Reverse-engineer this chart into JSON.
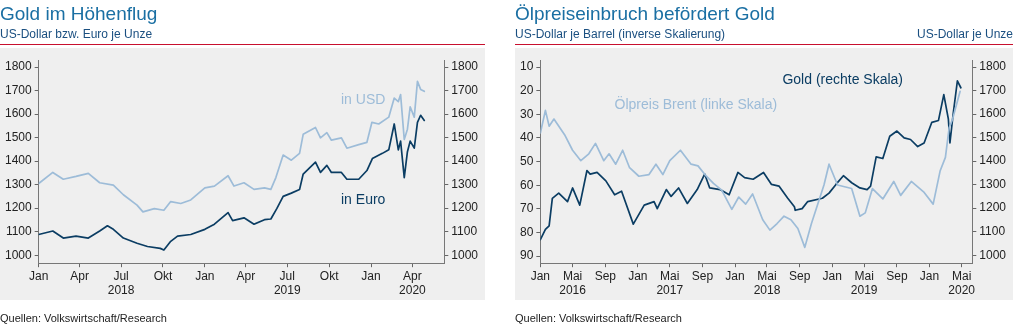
{
  "chart_data": [
    {
      "type": "line",
      "title": "Gold im Höhenflug",
      "subtitle": "US-Dollar bzw. Euro je Unze",
      "annotations": [
        "Quellen: Volkswirtschaft/Research"
      ],
      "xlim": [
        "2018-01-01",
        "2020-06-10"
      ],
      "xticks": [
        {
          "value": "2018-01-01",
          "label": "Jan"
        },
        {
          "value": "2018-04-01",
          "label": "Apr"
        },
        {
          "value": "2018-07-01",
          "label": "Jul\n2018"
        },
        {
          "value": "2018-10-01",
          "label": "Okt"
        },
        {
          "value": "2019-01-01",
          "label": "Jan"
        },
        {
          "value": "2019-04-01",
          "label": "Apr"
        },
        {
          "value": "2019-07-01",
          "label": "Jul\n2019"
        },
        {
          "value": "2019-10-01",
          "label": "Okt"
        },
        {
          "value": "2020-01-01",
          "label": "Jan"
        },
        {
          "value": "2020-04-01",
          "label": "Apr\n2020"
        }
      ],
      "ylim": [
        966,
        1830
      ],
      "yticks": [
        1000,
        1100,
        1200,
        1300,
        1400,
        1500,
        1600,
        1700,
        1800
      ],
      "y2lim": [
        966,
        1830
      ],
      "y2ticks": [
        1000,
        1100,
        1200,
        1300,
        1400,
        1500,
        1600,
        1700,
        1800
      ],
      "series": [
        {
          "name": "in USD",
          "color": "#9dbcd8",
          "x": [
            "2018-01-01",
            "2018-02-01",
            "2018-02-24",
            "2018-03-24",
            "2018-04-20",
            "2018-05-15",
            "2018-06-14",
            "2018-07-06",
            "2018-08-05",
            "2018-08-18",
            "2018-09-12",
            "2018-10-03",
            "2018-10-18",
            "2018-11-09",
            "2018-12-01",
            "2019-01-01",
            "2019-01-22",
            "2019-02-21",
            "2019-03-06",
            "2019-03-28",
            "2019-04-19",
            "2019-05-12",
            "2019-05-26",
            "2019-06-06",
            "2019-06-22",
            "2019-07-10",
            "2019-07-28",
            "2019-08-05",
            "2019-09-01",
            "2019-09-12",
            "2019-09-26",
            "2019-10-06",
            "2019-10-28",
            "2019-11-09",
            "2019-12-05",
            "2019-12-23",
            "2020-01-03",
            "2020-01-18",
            "2020-02-09",
            "2020-02-21",
            "2020-03-01",
            "2020-03-06",
            "2020-03-14",
            "2020-03-21",
            "2020-03-27",
            "2020-04-05",
            "2020-04-12",
            "2020-04-19",
            "2020-04-27"
          ],
          "values": [
            1305,
            1352,
            1323,
            1335,
            1348,
            1308,
            1298,
            1257,
            1213,
            1184,
            1198,
            1191,
            1228,
            1220,
            1235,
            1286,
            1294,
            1338,
            1294,
            1308,
            1280,
            1286,
            1280,
            1330,
            1426,
            1404,
            1433,
            1514,
            1543,
            1499,
            1521,
            1489,
            1499,
            1455,
            1470,
            1480,
            1565,
            1558,
            1587,
            1668,
            1653,
            1683,
            1492,
            1536,
            1631,
            1587,
            1739,
            1705,
            1697
          ]
        },
        {
          "name": "in Euro",
          "color": "#0b3d63",
          "x": [
            "2018-01-01",
            "2018-02-01",
            "2018-02-24",
            "2018-03-24",
            "2018-04-20",
            "2018-05-15",
            "2018-06-01",
            "2018-06-14",
            "2018-07-06",
            "2018-08-05",
            "2018-08-28",
            "2018-09-25",
            "2018-10-03",
            "2018-10-18",
            "2018-11-02",
            "2018-12-01",
            "2019-01-01",
            "2019-01-22",
            "2019-02-21",
            "2019-03-03",
            "2019-03-28",
            "2019-04-19",
            "2019-05-12",
            "2019-05-26",
            "2019-06-08",
            "2019-06-22",
            "2019-07-10",
            "2019-07-28",
            "2019-08-05",
            "2019-09-01",
            "2019-09-12",
            "2019-09-26",
            "2019-10-06",
            "2019-10-28",
            "2019-11-09",
            "2019-12-05",
            "2019-12-23",
            "2020-01-04",
            "2020-01-26",
            "2020-02-09",
            "2020-02-21",
            "2020-03-01",
            "2020-03-06",
            "2020-03-14",
            "2020-03-21",
            "2020-03-27",
            "2020-04-05",
            "2020-04-12",
            "2020-04-19",
            "2020-04-27"
          ],
          "values": [
            1088,
            1103,
            1073,
            1081,
            1073,
            1103,
            1125,
            1110,
            1073,
            1051,
            1037,
            1029,
            1022,
            1059,
            1081,
            1088,
            1110,
            1132,
            1181,
            1147,
            1159,
            1132,
            1151,
            1154,
            1198,
            1250,
            1264,
            1279,
            1345,
            1396,
            1352,
            1382,
            1352,
            1352,
            1323,
            1323,
            1360,
            1411,
            1433,
            1448,
            1558,
            1448,
            1485,
            1330,
            1440,
            1485,
            1455,
            1565,
            1595,
            1573
          ]
        }
      ]
    },
    {
      "type": "line",
      "title": "Ölpreiseinbruch befördert Gold",
      "ylabel": "US-Dollar je Barrel (inverse Skalierung)",
      "y2label": "US-Dollar je Unze",
      "annotations": [
        "Quellen: Volkswirtschaft/Research"
      ],
      "xlim": [
        "2016-01-01",
        "2020-06-10"
      ],
      "xticks": [
        {
          "value": "2016-01-01",
          "label": "Jan"
        },
        {
          "value": "2016-05-01",
          "label": "Mai\n2016"
        },
        {
          "value": "2016-09-01",
          "label": "Sep"
        },
        {
          "value": "2017-01-01",
          "label": "Jan"
        },
        {
          "value": "2017-05-01",
          "label": "Mai\n2017"
        },
        {
          "value": "2017-09-01",
          "label": "Sep"
        },
        {
          "value": "2018-01-01",
          "label": "Jan"
        },
        {
          "value": "2018-05-01",
          "label": "Mai\n2018"
        },
        {
          "value": "2018-09-01",
          "label": "Sep"
        },
        {
          "value": "2019-01-01",
          "label": "Jan"
        },
        {
          "value": "2019-05-01",
          "label": "Mai\n2019"
        },
        {
          "value": "2019-09-01",
          "label": "Sep"
        },
        {
          "value": "2020-01-01",
          "label": "Jan"
        },
        {
          "value": "2020-05-01",
          "label": "Mai\n2020"
        }
      ],
      "ylim": [
        93,
        7
      ],
      "yticks": [
        10,
        20,
        30,
        40,
        50,
        60,
        70,
        80,
        90
      ],
      "y2lim": [
        966,
        1830
      ],
      "y2ticks": [
        1000,
        1100,
        1200,
        1300,
        1400,
        1500,
        1600,
        1700,
        1800
      ],
      "series": [
        {
          "name": "Ölpreis Brent (linke Skala)",
          "color": "#9dbcd8",
          "x": [
            "2016-01-01",
            "2016-01-20",
            "2016-02-03",
            "2016-02-21",
            "2016-04-01",
            "2016-05-01",
            "2016-06-01",
            "2016-07-01",
            "2016-07-26",
            "2016-08-26",
            "2016-09-15",
            "2016-10-10",
            "2016-11-05",
            "2016-12-01",
            "2017-01-05",
            "2017-02-12",
            "2017-03-10",
            "2017-04-05",
            "2017-05-01",
            "2017-06-10",
            "2017-07-20",
            "2017-08-15",
            "2017-09-10",
            "2017-10-12",
            "2017-11-12",
            "2017-12-20",
            "2018-01-15",
            "2018-02-10",
            "2018-03-08",
            "2018-04-15",
            "2018-05-12",
            "2018-06-08",
            "2018-07-04",
            "2018-07-30",
            "2018-08-25",
            "2018-09-20",
            "2018-10-15",
            "2018-12-01",
            "2018-12-20",
            "2019-01-21",
            "2019-03-15",
            "2019-04-15",
            "2019-05-05",
            "2019-06-01",
            "2019-07-10",
            "2019-08-20",
            "2019-09-15",
            "2019-10-25",
            "2019-12-10",
            "2020-01-15",
            "2020-02-10",
            "2020-03-01",
            "2020-03-15",
            "2020-03-28",
            "2020-04-25"
          ],
          "values": [
            37.9,
            28.3,
            35,
            32,
            38.6,
            45.2,
            49.6,
            46.7,
            42.3,
            49.6,
            46.7,
            51.1,
            45.2,
            52.6,
            56.2,
            55.5,
            51.1,
            55.5,
            49.6,
            45.2,
            51.1,
            51.8,
            55.5,
            59.2,
            62.1,
            70.2,
            65,
            68,
            63.7,
            74.6,
            79,
            76.2,
            73.1,
            74.6,
            78.3,
            86.3,
            76.2,
            59.9,
            51.1,
            59.9,
            61.4,
            73.1,
            71.7,
            61.4,
            65.8,
            58.4,
            64.3,
            58.4,
            62.8,
            68,
            54,
            48.2,
            35.7,
            32,
            20.3
          ]
        },
        {
          "name": "Gold (rechte Skala)",
          "color": "#0b3d63",
          "axis": "y2",
          "x": [
            "2016-01-01",
            "2016-01-20",
            "2016-02-03",
            "2016-02-15",
            "2016-03-10",
            "2016-04-12",
            "2016-05-01",
            "2016-05-28",
            "2016-06-24",
            "2016-07-06",
            "2016-08-01",
            "2016-09-03",
            "2016-10-06",
            "2016-11-01",
            "2016-12-15",
            "2017-01-25",
            "2017-03-03",
            "2017-03-15",
            "2017-04-18",
            "2017-05-06",
            "2017-06-03",
            "2017-07-06",
            "2017-08-12",
            "2017-09-09",
            "2017-09-28",
            "2017-11-06",
            "2017-12-10",
            "2018-01-12",
            "2018-02-06",
            "2018-03-10",
            "2018-04-18",
            "2018-05-18",
            "2018-06-15",
            "2018-07-18",
            "2018-08-12",
            "2018-08-15",
            "2018-09-10",
            "2018-10-01",
            "2018-11-25",
            "2018-12-20",
            "2019-01-15",
            "2019-02-12",
            "2019-03-15",
            "2019-04-15",
            "2019-05-12",
            "2019-05-25",
            "2019-06-15",
            "2019-07-10",
            "2019-08-05",
            "2019-09-01",
            "2019-09-28",
            "2019-10-22",
            "2019-11-18",
            "2019-12-12",
            "2020-01-10",
            "2020-02-04",
            "2020-02-24",
            "2020-03-12",
            "2020-03-18",
            "2020-03-31",
            "2020-04-15",
            "2020-04-28"
          ],
          "values": [
            1066,
            1110,
            1125,
            1242,
            1264,
            1228,
            1286,
            1213,
            1360,
            1345,
            1352,
            1316,
            1257,
            1272,
            1132,
            1213,
            1228,
            1198,
            1279,
            1250,
            1286,
            1220,
            1279,
            1345,
            1286,
            1279,
            1257,
            1352,
            1330,
            1323,
            1352,
            1301,
            1294,
            1242,
            1206,
            1191,
            1198,
            1228,
            1242,
            1264,
            1301,
            1338,
            1308,
            1286,
            1279,
            1294,
            1418,
            1411,
            1506,
            1528,
            1499,
            1492,
            1462,
            1477,
            1565,
            1573,
            1683,
            1580,
            1477,
            1609,
            1741,
            1712
          ]
        }
      ]
    }
  ]
}
